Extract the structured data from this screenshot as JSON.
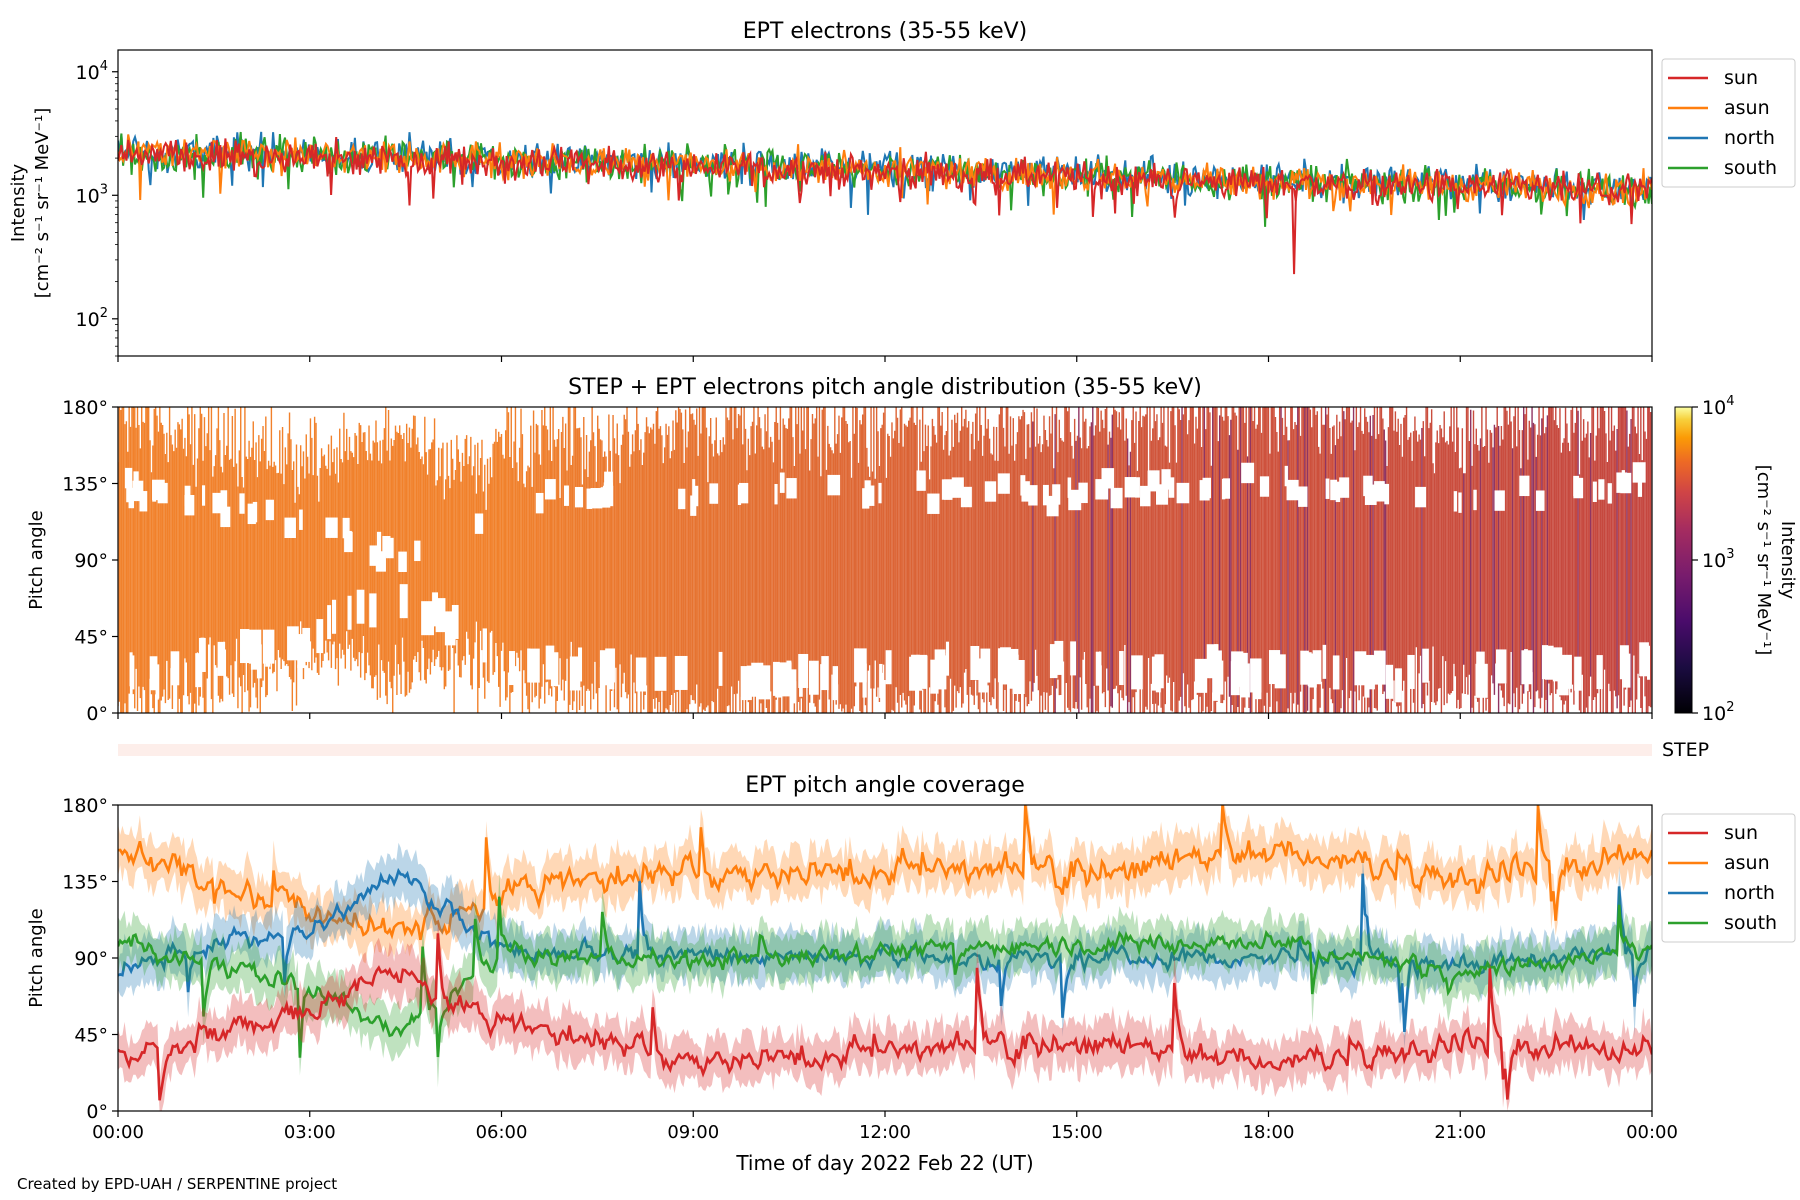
{
  "credit": "Created by EPD-UAH / SERPENTINE project",
  "x_axis": {
    "label": "Time of day 2022 Feb 22 (UT)",
    "ticks": [
      "00:00",
      "03:00",
      "06:00",
      "09:00",
      "12:00",
      "15:00",
      "18:00",
      "21:00",
      "00:00"
    ],
    "range_hours": [
      0,
      24
    ]
  },
  "colors": {
    "sun": "#d62728",
    "asun": "#ff7f0e",
    "north": "#1f77b4",
    "south": "#2ca02c",
    "step_band": "#fdeeea"
  },
  "chart_data": [
    {
      "type": "line",
      "title": "EPT electrons (35-55 keV)",
      "ylabel_line1": "Intensity",
      "ylabel_line2": "[cm⁻² s⁻¹ sr⁻¹ MeV⁻¹]",
      "y_scale": "log",
      "ylim": [
        50,
        15000
      ],
      "y_ticks": [
        {
          "base": "10",
          "exp": "2",
          "value": 100
        },
        {
          "base": "10",
          "exp": "3",
          "value": 1000
        },
        {
          "base": "10",
          "exp": "4",
          "value": 10000
        }
      ],
      "legend": [
        "sun",
        "asun",
        "north",
        "south"
      ],
      "legend_position": "outside-right",
      "series": [
        {
          "name": "north",
          "trend": [
            [
              0,
              2300
            ],
            [
              6,
              2000
            ],
            [
              12,
              1650
            ],
            [
              18,
              1350
            ],
            [
              24,
              1150
            ]
          ],
          "noise": 0.28
        },
        {
          "name": "south",
          "trend": [
            [
              0,
              2200
            ],
            [
              6,
              1950
            ],
            [
              12,
              1600
            ],
            [
              18,
              1300
            ],
            [
              24,
              1100
            ]
          ],
          "noise": 0.28
        },
        {
          "name": "asun",
          "trend": [
            [
              0,
              2250
            ],
            [
              6,
              1950
            ],
            [
              12,
              1600
            ],
            [
              18,
              1300
            ],
            [
              24,
              1100
            ]
          ],
          "noise": 0.26
        },
        {
          "name": "sun",
          "trend": [
            [
              0,
              2100
            ],
            [
              6,
              1850
            ],
            [
              12,
              1550
            ],
            [
              18,
              1250
            ],
            [
              24,
              1080
            ]
          ],
          "noise": 0.26
        }
      ],
      "notable_points": [
        {
          "series": "sun",
          "x_hours": 18.4,
          "y": 230
        }
      ]
    },
    {
      "type": "heatmap",
      "title": "STEP + EPT electrons pitch angle distribution (35-55 keV)",
      "ylabel": "Pitch angle",
      "ylim": [
        0,
        180
      ],
      "y_ticks": [
        "0°",
        "45°",
        "90°",
        "135°",
        "180°"
      ],
      "colorbar": {
        "label_line1": "Intensity",
        "label_line2": "[cm⁻² s⁻¹ sr⁻¹ MeV⁻¹]",
        "scale": "log",
        "range": [
          100,
          10000
        ],
        "ticks": [
          {
            "base": "10",
            "exp": "2"
          },
          {
            "base": "10",
            "exp": "3"
          },
          {
            "base": "10",
            "exp": "4"
          }
        ],
        "colormap": "inferno"
      },
      "dominant_color_early": "#f07a20",
      "dominant_color_late": "#c23c35"
    },
    {
      "type": "band",
      "label": "STEP"
    },
    {
      "type": "line",
      "title": "EPT pitch angle coverage",
      "ylabel": "Pitch angle",
      "ylim": [
        0,
        180
      ],
      "y_ticks": [
        "0°",
        "45°",
        "90°",
        "135°",
        "180°"
      ],
      "legend": [
        "sun",
        "asun",
        "north",
        "south"
      ],
      "legend_position": "outside-right",
      "series": [
        {
          "name": "asun",
          "trend": [
            [
              0,
              150
            ],
            [
              3,
              118
            ],
            [
              5,
              105
            ],
            [
              6,
              130
            ],
            [
              9,
              140
            ],
            [
              12,
              142
            ],
            [
              15,
              140
            ],
            [
              18,
              152
            ],
            [
              21,
              138
            ],
            [
              24,
              150
            ]
          ],
          "noise": 14
        },
        {
          "name": "north",
          "trend": [
            [
              0,
              85
            ],
            [
              3,
              108
            ],
            [
              4.3,
              140
            ],
            [
              6,
              95
            ],
            [
              9,
              92
            ],
            [
              12,
              90
            ],
            [
              15,
              90
            ],
            [
              18,
              90
            ],
            [
              21,
              85
            ],
            [
              24,
              95
            ]
          ],
          "noise": 9
        },
        {
          "name": "south",
          "trend": [
            [
              0,
              100
            ],
            [
              3,
              72
            ],
            [
              4.3,
              45
            ],
            [
              6,
              92
            ],
            [
              9,
              88
            ],
            [
              12,
              95
            ],
            [
              15,
              98
            ],
            [
              18,
              100
            ],
            [
              21,
              82
            ],
            [
              24,
              95
            ]
          ],
          "noise": 9
        },
        {
          "name": "sun",
          "trend": [
            [
              0,
              30
            ],
            [
              3,
              62
            ],
            [
              4.3,
              80
            ],
            [
              6,
              50
            ],
            [
              9,
              30
            ],
            [
              12,
              35
            ],
            [
              15,
              40
            ],
            [
              18,
              28
            ],
            [
              21,
              40
            ],
            [
              24,
              35
            ]
          ],
          "noise": 12
        }
      ]
    }
  ]
}
